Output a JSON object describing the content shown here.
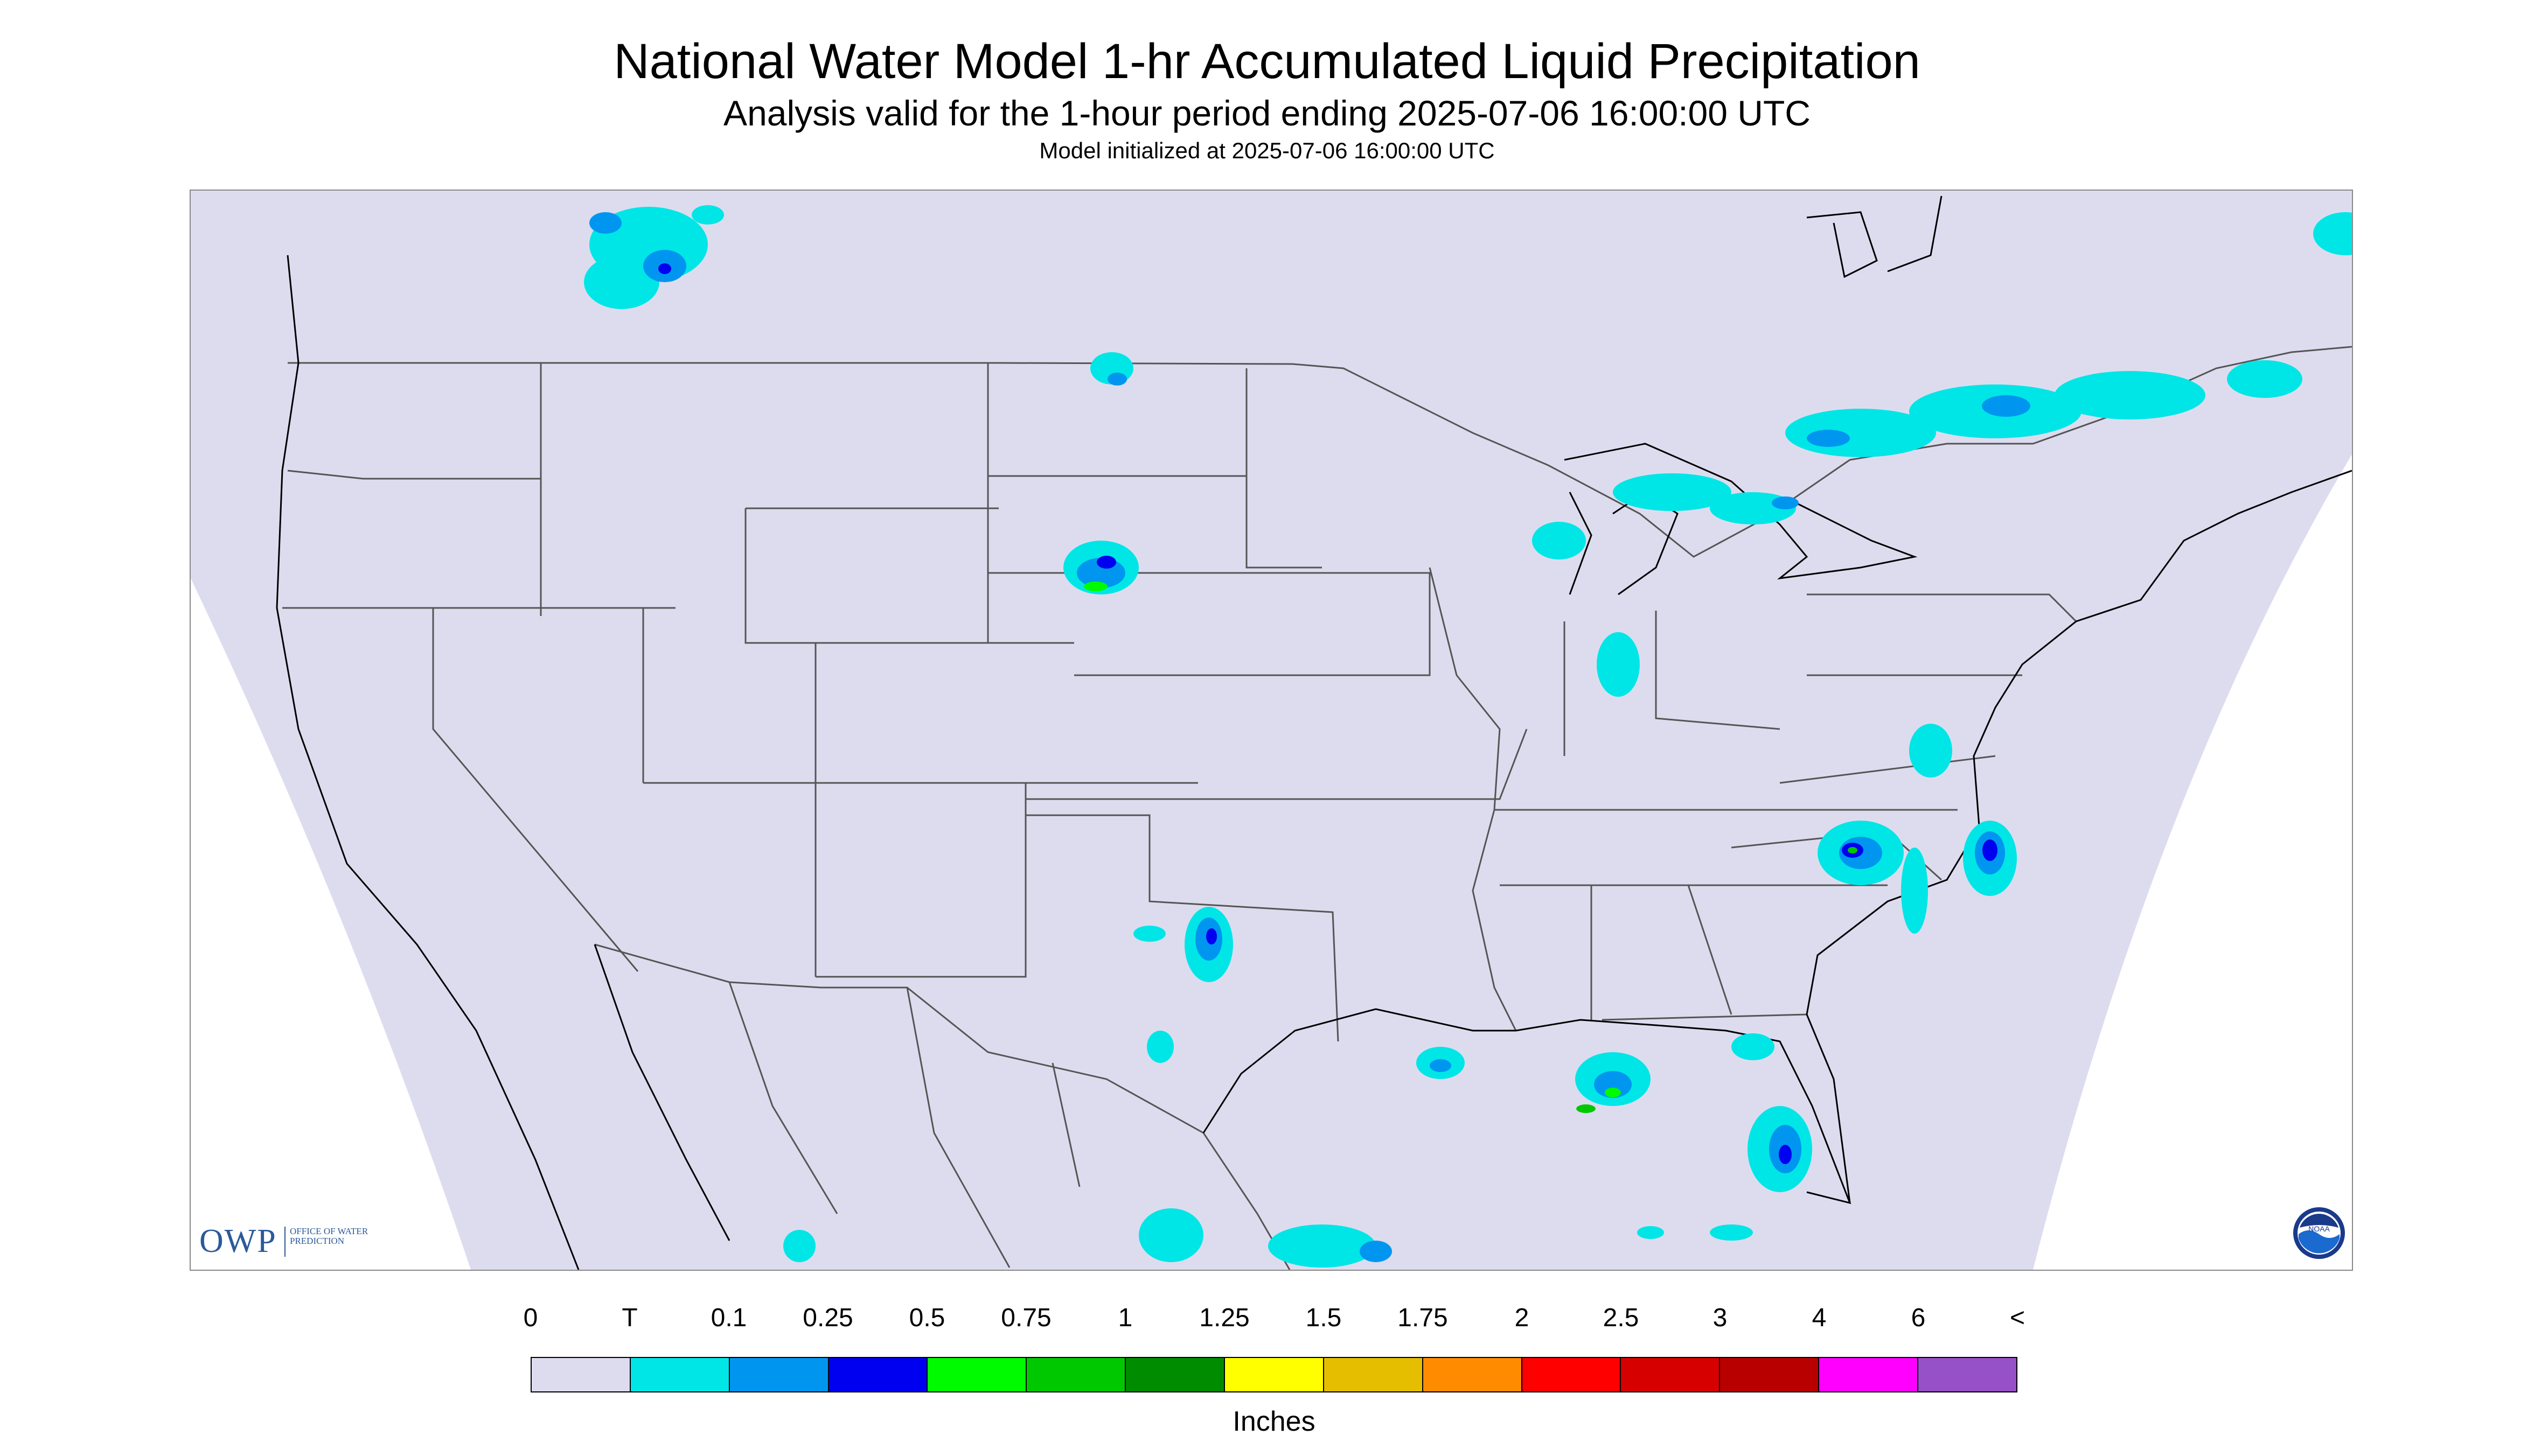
{
  "title": "National Water Model 1-hr Accumulated Liquid Precipitation",
  "subtitle": "Analysis valid for the 1-hour period ending 2025-07-06 16:00:00 UTC",
  "init_line": "Model initialized at 2025-07-06 16:00:00 UTC",
  "colors": {
    "map_background": "#dddcef",
    "outside_projection": "#ffffff",
    "boundary_line": "#555555",
    "coastline": "#000000"
  },
  "owp_logo": {
    "mark": "OWP",
    "text": "Office of Water Prediction"
  },
  "noaa_logo": {
    "text": "NOAA"
  },
  "legend": {
    "units": "Inches",
    "tick_labels": [
      "0",
      "T",
      "0.1",
      "0.25",
      "0.5",
      "0.75",
      "1",
      "1.25",
      "1.5",
      "1.75",
      "2",
      "2.5",
      "3",
      "4",
      "6",
      "<"
    ],
    "colors": [
      "#dddcef",
      "#00e6e6",
      "#0096f0",
      "#0000f0",
      "#00fa00",
      "#00c800",
      "#008c00",
      "#ffff00",
      "#e6be00",
      "#ff8c00",
      "#ff0000",
      "#d70000",
      "#b90000",
      "#ff00ff",
      "#9650c8"
    ]
  },
  "precip_areas": [
    {
      "region": "southern-alberta",
      "level": "T"
    },
    {
      "region": "southern-alberta",
      "level": "0.1"
    },
    {
      "region": "southern-alberta",
      "level": "0.25"
    },
    {
      "region": "north-dakota",
      "level": "T"
    },
    {
      "region": "south-dakota",
      "level": "T"
    },
    {
      "region": "south-dakota",
      "level": "0.1"
    },
    {
      "region": "south-dakota",
      "level": "0.25"
    },
    {
      "region": "south-dakota",
      "level": "0.5"
    },
    {
      "region": "ontario-quebec",
      "level": "T"
    },
    {
      "region": "ontario-quebec",
      "level": "0.1"
    },
    {
      "region": "great-lakes",
      "level": "T"
    },
    {
      "region": "great-lakes",
      "level": "0.1"
    },
    {
      "region": "oklahoma-texas",
      "level": "T"
    },
    {
      "region": "oklahoma-texas",
      "level": "0.1"
    },
    {
      "region": "oklahoma-texas",
      "level": "0.25"
    },
    {
      "region": "carolinas",
      "level": "T"
    },
    {
      "region": "carolinas",
      "level": "0.1"
    },
    {
      "region": "carolinas",
      "level": "0.25"
    },
    {
      "region": "carolinas",
      "level": "0.5"
    },
    {
      "region": "carolinas",
      "level": "0.75"
    },
    {
      "region": "gulf-coast",
      "level": "T"
    },
    {
      "region": "gulf-coast",
      "level": "0.1"
    },
    {
      "region": "gulf-coast",
      "level": "0.5"
    },
    {
      "region": "gulf-coast",
      "level": "0.75"
    },
    {
      "region": "florida",
      "level": "T"
    },
    {
      "region": "florida",
      "level": "0.1"
    },
    {
      "region": "florida",
      "level": "0.25"
    },
    {
      "region": "mexico",
      "level": "T"
    },
    {
      "region": "mexico",
      "level": "0.1"
    },
    {
      "region": "new-england",
      "level": "T"
    },
    {
      "region": "new-england",
      "level": "0.1"
    }
  ]
}
